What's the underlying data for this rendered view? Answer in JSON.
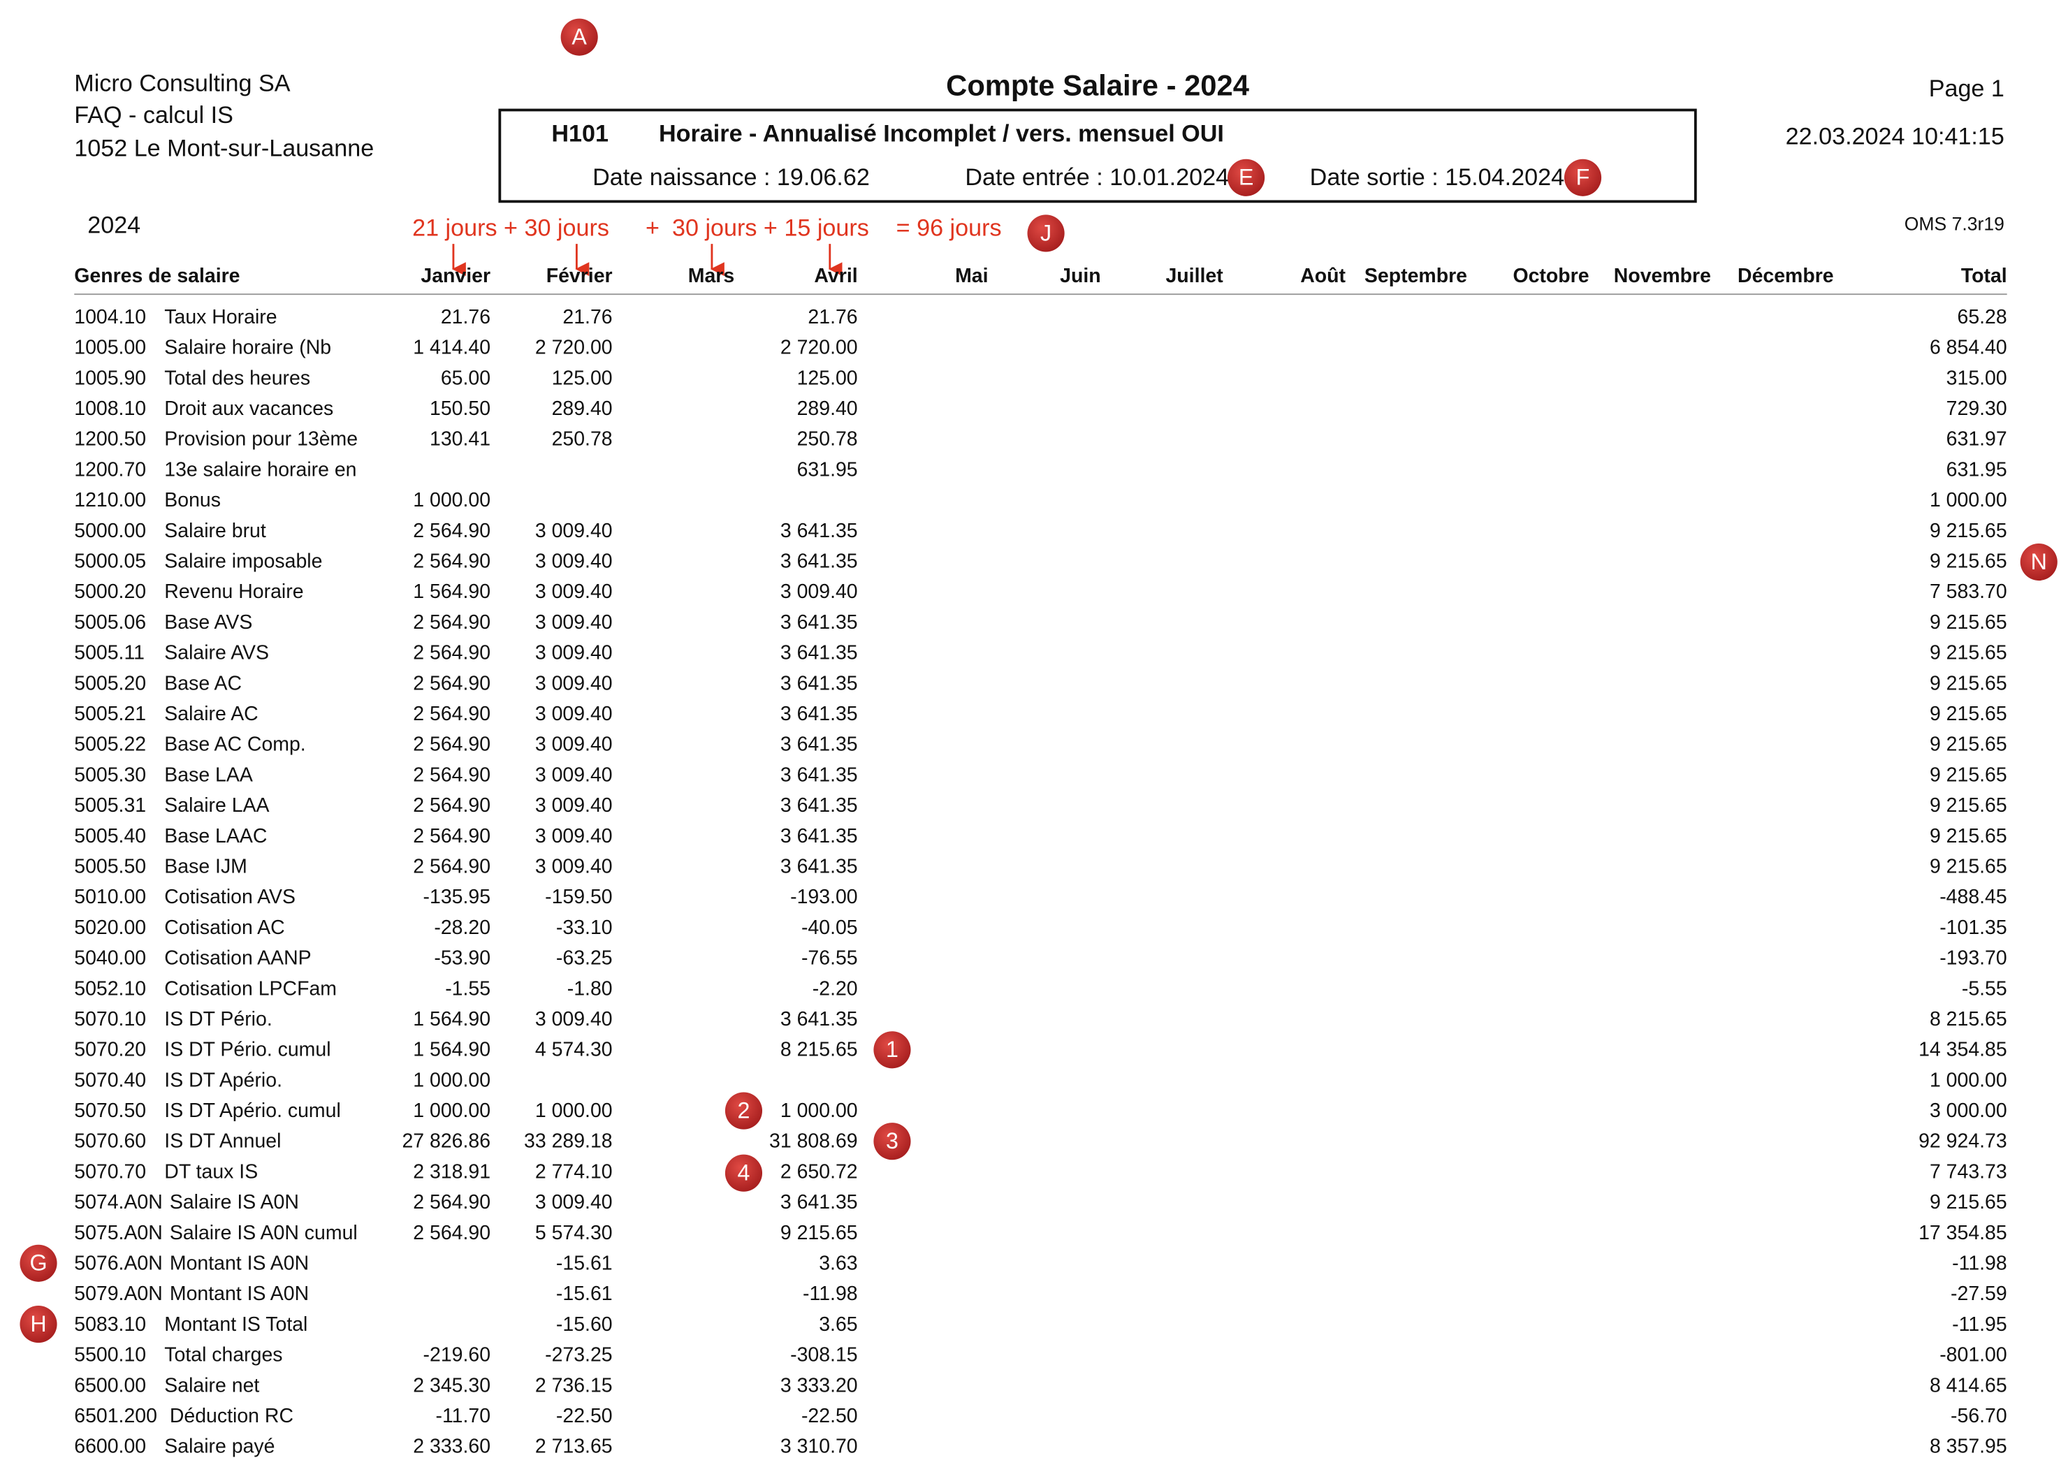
{
  "header": {
    "company": [
      "Micro Consulting SA",
      "FAQ - calcul IS",
      "1052 Le Mont-sur-Lausanne"
    ],
    "title": "Compte Salaire - 2024",
    "page": "Page 1",
    "datetime": "22.03.2024 10:41:15",
    "employee_code": "H101",
    "employee_desc": "Horaire - Annualisé Incomplet / vers. mensuel OUI",
    "birth": "Date naissance : 19.06.62",
    "entry": "Date entrée : 10.01.2024",
    "exit": "Date sortie : 15.04.2024",
    "year": "2024",
    "version": "OMS 7.3r19"
  },
  "annotation": [
    "21 jours + 30 jours",
    "+",
    "30 jours + 15 jours",
    "= 96 jours"
  ],
  "markers": [
    "A",
    "E",
    "F",
    "J",
    "N",
    "1",
    "2",
    "3",
    "4",
    "G",
    "H"
  ],
  "table": {
    "columns": [
      "Genres de salaire",
      "Janvier",
      "Février",
      "Mars",
      "Avril",
      "Mai",
      "Juin",
      "Juillet",
      "Août",
      "Septembre",
      "Octobre",
      "Novembre",
      "Décembre",
      "Total"
    ],
    "rows": [
      [
        "1004.10",
        "Taux Horaire",
        "21.76",
        "21.76",
        "21.76",
        "65.28"
      ],
      [
        "1005.00",
        "Salaire horaire (Nb",
        "1 414.40",
        "2 720.00",
        "2 720.00",
        "6 854.40"
      ],
      [
        "1005.90",
        "Total des heures",
        "65.00",
        "125.00",
        "125.00",
        "315.00"
      ],
      [
        "1008.10",
        "Droit aux vacances",
        "150.50",
        "289.40",
        "289.40",
        "729.30"
      ],
      [
        "1200.50",
        "Provision pour 13ème",
        "130.41",
        "250.78",
        "250.78",
        "631.97"
      ],
      [
        "1200.70",
        "13e salaire horaire en",
        null,
        null,
        "631.95",
        "631.95"
      ],
      [
        "1210.00",
        "Bonus",
        "1 000.00",
        null,
        null,
        "1 000.00"
      ],
      [
        "5000.00",
        "Salaire brut",
        "2 564.90",
        "3 009.40",
        "3 641.35",
        "9 215.65"
      ],
      [
        "5000.05",
        "Salaire imposable",
        "2 564.90",
        "3 009.40",
        "3 641.35",
        "9 215.65"
      ],
      [
        "5000.20",
        "Revenu Horaire",
        "1 564.90",
        "3 009.40",
        "3 009.40",
        "7 583.70"
      ],
      [
        "5005.06",
        "Base AVS",
        "2 564.90",
        "3 009.40",
        "3 641.35",
        "9 215.65"
      ],
      [
        "5005.11",
        "Salaire AVS",
        "2 564.90",
        "3 009.40",
        "3 641.35",
        "9 215.65"
      ],
      [
        "5005.20",
        "Base AC",
        "2 564.90",
        "3 009.40",
        "3 641.35",
        "9 215.65"
      ],
      [
        "5005.21",
        "Salaire AC",
        "2 564.90",
        "3 009.40",
        "3 641.35",
        "9 215.65"
      ],
      [
        "5005.22",
        "Base AC Comp.",
        "2 564.90",
        "3 009.40",
        "3 641.35",
        "9 215.65"
      ],
      [
        "5005.30",
        "Base LAA",
        "2 564.90",
        "3 009.40",
        "3 641.35",
        "9 215.65"
      ],
      [
        "5005.31",
        "Salaire LAA",
        "2 564.90",
        "3 009.40",
        "3 641.35",
        "9 215.65"
      ],
      [
        "5005.40",
        "Base LAAC",
        "2 564.90",
        "3 009.40",
        "3 641.35",
        "9 215.65"
      ],
      [
        "5005.50",
        "Base IJM",
        "2 564.90",
        "3 009.40",
        "3 641.35",
        "9 215.65"
      ],
      [
        "5010.00",
        "Cotisation AVS",
        "-135.95",
        "-159.50",
        "-193.00",
        "-488.45"
      ],
      [
        "5020.00",
        "Cotisation AC",
        "-28.20",
        "-33.10",
        "-40.05",
        "-101.35"
      ],
      [
        "5040.00",
        "Cotisation AANP",
        "-53.90",
        "-63.25",
        "-76.55",
        "-193.70"
      ],
      [
        "5052.10",
        "Cotisation LPCFam",
        "-1.55",
        "-1.80",
        "-2.20",
        "-5.55"
      ],
      [
        "5070.10",
        "IS DT Pério.",
        "1 564.90",
        "3 009.40",
        "3 641.35",
        "8 215.65"
      ],
      [
        "5070.20",
        "IS DT Pério. cumul",
        "1 564.90",
        "4 574.30",
        "8 215.65",
        "14 354.85"
      ],
      [
        "5070.40",
        "IS DT Apério.",
        "1 000.00",
        null,
        null,
        "1 000.00"
      ],
      [
        "5070.50",
        "IS DT Apério. cumul",
        "1 000.00",
        "1 000.00",
        "1 000.00",
        "3 000.00"
      ],
      [
        "5070.60",
        "IS DT Annuel",
        "27 826.86",
        "33 289.18",
        "31 808.69",
        "92 924.73"
      ],
      [
        "5070.70",
        "DT taux IS",
        "2 318.91",
        "2 774.10",
        "2 650.72",
        "7 743.73"
      ],
      [
        "5074.A0N",
        "Salaire IS A0N",
        "2 564.90",
        "3 009.40",
        "3 641.35",
        "9 215.65"
      ],
      [
        "5075.A0N",
        "Salaire IS A0N cumul",
        "2 564.90",
        "5 574.30",
        "9 215.65",
        "17 354.85"
      ],
      [
        "5076.A0N",
        "Montant IS A0N",
        null,
        "-15.61",
        "3.63",
        "-11.98"
      ],
      [
        "5079.A0N",
        "Montant IS A0N",
        null,
        "-15.61",
        "-11.98",
        "-27.59"
      ],
      [
        "5083.10",
        "Montant IS Total",
        null,
        "-15.60",
        "3.65",
        "-11.95"
      ],
      [
        "5500.10",
        "Total charges",
        "-219.60",
        "-273.25",
        "-308.15",
        "-801.00"
      ],
      [
        "6500.00",
        "Salaire net",
        "2 345.30",
        "2 736.15",
        "3 333.20",
        "8 414.65"
      ],
      [
        "6501.200",
        "Déduction RC",
        "-11.70",
        "-22.50",
        "-22.50",
        "-56.70"
      ],
      [
        "6600.00",
        "Salaire payé",
        "2 333.60",
        "2 713.65",
        "3 310.70",
        "8 357.95"
      ]
    ]
  }
}
